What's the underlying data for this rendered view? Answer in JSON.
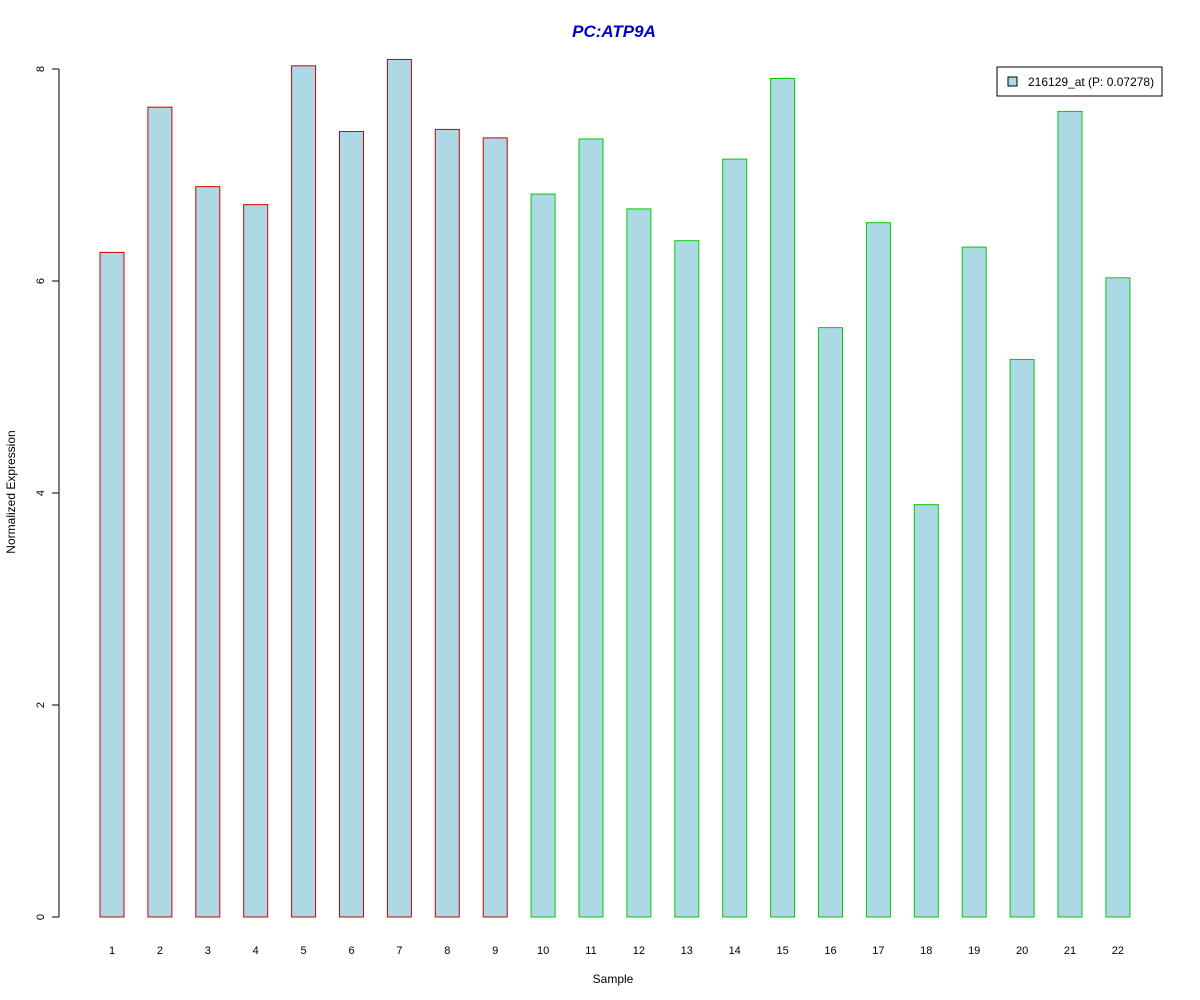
{
  "chart_data": {
    "type": "bar",
    "title": "PC:ATP9A",
    "xlabel": "Sample",
    "ylabel": "Normalized Expression",
    "categories": [
      "1",
      "2",
      "3",
      "4",
      "5",
      "6",
      "7",
      "8",
      "9",
      "10",
      "11",
      "12",
      "13",
      "14",
      "15",
      "16",
      "17",
      "18",
      "19",
      "20",
      "21",
      "22"
    ],
    "series": [
      {
        "name": "216129_at (P: 0.07278)",
        "values": [
          6.27,
          7.64,
          6.89,
          6.72,
          8.03,
          7.41,
          8.09,
          7.43,
          7.35,
          6.82,
          7.34,
          6.68,
          6.38,
          7.15,
          7.91,
          5.56,
          6.55,
          3.89,
          6.32,
          5.26,
          7.6,
          6.03
        ]
      }
    ],
    "groups": [
      1,
      1,
      1,
      1,
      1,
      1,
      1,
      1,
      1,
      2,
      2,
      2,
      2,
      2,
      2,
      2,
      2,
      2,
      2,
      2,
      2,
      2
    ],
    "yticks": [
      0,
      2,
      4,
      6,
      8
    ],
    "ylim": [
      0,
      8.09
    ],
    "legend_position": "top-right",
    "grid": false,
    "colors": {
      "title": "#0000cc",
      "bar_fill": "#add8e6",
      "group1_border": "#cc0000",
      "group2_border": "#00cc00",
      "axis": "#000000"
    }
  }
}
